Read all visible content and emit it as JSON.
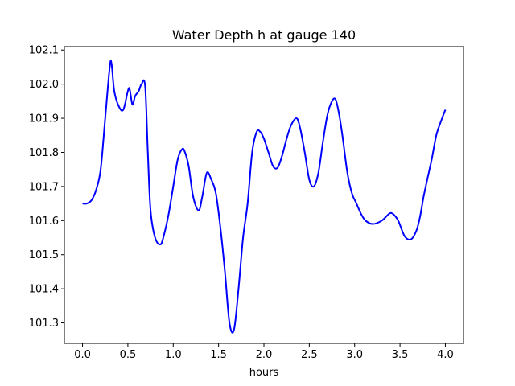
{
  "chart_data": {
    "type": "line",
    "title": "Water Depth h at gauge 140",
    "xlabel": "hours",
    "ylabel": "",
    "xlim": [
      -0.2,
      4.2
    ],
    "ylim": [
      101.24,
      102.11
    ],
    "xticks": [
      0.0,
      0.5,
      1.0,
      1.5,
      2.0,
      2.5,
      3.0,
      3.5,
      4.0
    ],
    "xtick_labels": [
      "0.0",
      "0.5",
      "1.0",
      "1.5",
      "2.0",
      "2.5",
      "3.0",
      "3.5",
      "4.0"
    ],
    "yticks": [
      101.3,
      101.4,
      101.5,
      101.6,
      101.7,
      101.8,
      101.9,
      102.0,
      102.1
    ],
    "ytick_labels": [
      "101.3",
      "101.4",
      "101.5",
      "101.6",
      "101.7",
      "101.8",
      "101.9",
      "102.0",
      "102.1"
    ],
    "grid": false,
    "series": [
      {
        "color": "#0000ff",
        "x": [
          0.0,
          0.05,
          0.1,
          0.15,
          0.2,
          0.25,
          0.3,
          0.32,
          0.35,
          0.4,
          0.45,
          0.5,
          0.52,
          0.55,
          0.58,
          0.62,
          0.65,
          0.69,
          0.72,
          0.75,
          0.8,
          0.86,
          0.9,
          0.95,
          1.0,
          1.05,
          1.1,
          1.13,
          1.17,
          1.22,
          1.28,
          1.32,
          1.37,
          1.42,
          1.47,
          1.52,
          1.57,
          1.62,
          1.67,
          1.72,
          1.77,
          1.82,
          1.87,
          1.92,
          1.96,
          2.0,
          2.05,
          2.1,
          2.15,
          2.2,
          2.25,
          2.3,
          2.36,
          2.4,
          2.45,
          2.5,
          2.55,
          2.6,
          2.65,
          2.7,
          2.75,
          2.79,
          2.83,
          2.87,
          2.92,
          2.97,
          3.02,
          3.07,
          3.12,
          3.2,
          3.3,
          3.38,
          3.42,
          3.48,
          3.55,
          3.62,
          3.68,
          3.72,
          3.76,
          3.8,
          3.85,
          3.9,
          3.95,
          4.0
        ],
        "y": [
          101.65,
          101.65,
          101.66,
          101.69,
          101.75,
          101.9,
          102.05,
          102.06,
          101.98,
          101.935,
          101.925,
          101.98,
          101.985,
          101.94,
          101.965,
          101.98,
          102.0,
          101.995,
          101.8,
          101.63,
          101.55,
          101.53,
          101.56,
          101.62,
          101.7,
          101.78,
          101.81,
          101.8,
          101.76,
          101.67,
          101.63,
          101.67,
          101.74,
          101.72,
          101.68,
          101.58,
          101.45,
          101.3,
          101.28,
          101.4,
          101.55,
          101.65,
          101.8,
          101.86,
          101.86,
          101.84,
          101.8,
          101.76,
          101.755,
          101.79,
          101.84,
          101.88,
          101.9,
          101.87,
          101.8,
          101.72,
          101.7,
          101.74,
          101.83,
          101.91,
          101.95,
          101.955,
          101.91,
          101.84,
          101.74,
          101.68,
          101.65,
          101.62,
          101.6,
          101.59,
          101.6,
          101.62,
          101.62,
          101.6,
          101.555,
          101.545,
          101.57,
          101.61,
          101.67,
          101.72,
          101.78,
          101.85,
          101.89,
          101.925
        ]
      }
    ]
  }
}
